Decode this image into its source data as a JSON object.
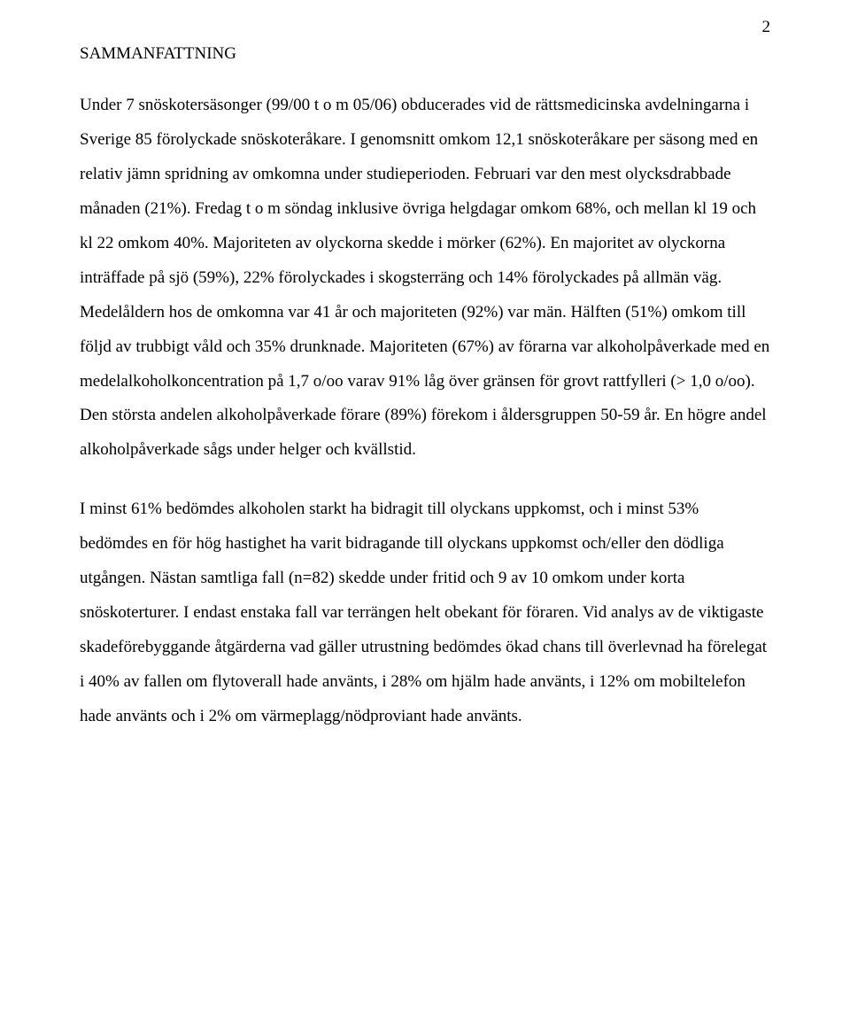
{
  "pageNumber": "2",
  "heading": "SAMMANFATTNING",
  "para1": "Under 7 snöskotersäsonger (99/00 t o m 05/06) obducerades vid de rättsmedicinska avdelningarna i Sverige 85 förolyckade snöskoteråkare. I genomsnitt omkom 12,1 snöskoteråkare per säsong med en relativ jämn spridning av omkomna under studieperioden. Februari var den mest olycksdrabbade månaden (21%). Fredag t o m söndag inklusive övriga helgdagar omkom 68%, och mellan kl 19 och kl 22 omkom 40%. Majoriteten av olyckorna skedde i mörker (62%). En majoritet av olyckorna inträffade på sjö (59%), 22% förolyckades i skogsterräng och 14% förolyckades på allmän väg. Medelåldern hos de omkomna var 41 år och majoriteten (92%) var män. Hälften (51%) omkom till följd av trubbigt våld och 35% drunknade. Majoriteten (67%) av förarna var alkoholpåverkade med en medelalkoholkoncentration på 1,7 o/oo varav 91% låg över gränsen för grovt rattfylleri (> 1,0 o/oo). Den största andelen alkoholpåverkade förare (89%) förekom i åldersgruppen 50-59 år. En högre andel alkoholpåverkade sågs under helger och kvällstid.",
  "para2": "I minst 61% bedömdes alkoholen starkt ha bidragit till olyckans uppkomst, och i minst 53% bedömdes en för hög hastighet ha varit bidragande till olyckans uppkomst och/eller den dödliga utgången. Nästan samtliga fall (n=82) skedde under fritid och 9 av 10 omkom under korta snöskoterturer. I endast enstaka fall var terrängen helt obekant för föraren. Vid analys av de viktigaste skadeförebyggande åtgärderna vad gäller utrustning bedömdes ökad chans till överlevnad ha förelegat i 40% av fallen om flytoverall hade använts, i 28% om hjälm hade använts, i 12% om mobiltelefon hade använts och i 2% om värmeplagg/nödproviant hade använts."
}
